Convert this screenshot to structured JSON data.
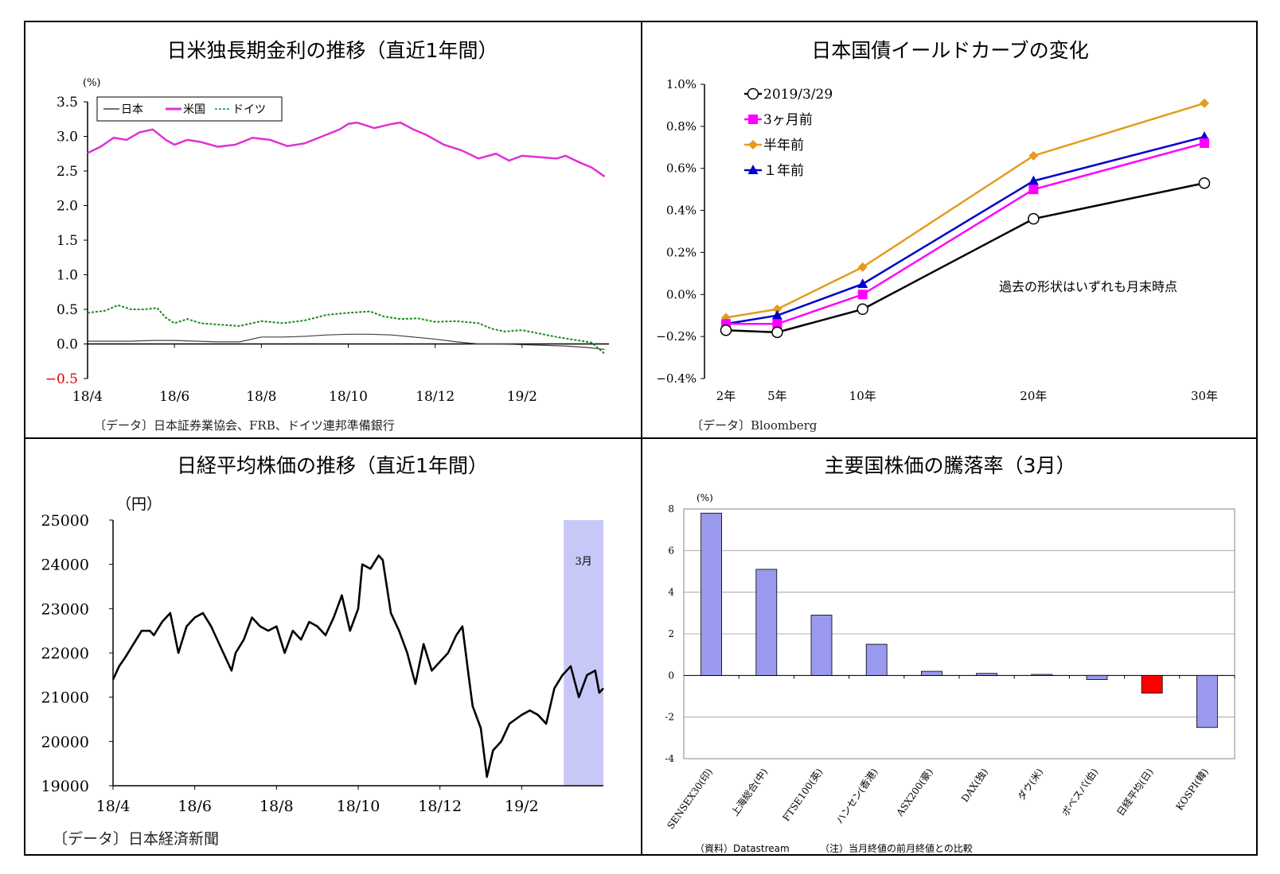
{
  "panels": [
    {
      "title": "日米独長期金利の推移（直近1年間）",
      "source": "〔データ〕日本証券業協会、FRB、ドイツ連邦準備銀行"
    },
    {
      "title": "日本国債イールドカーブの変化",
      "source": "〔データ〕Bloomberg"
    },
    {
      "title": "日経平均株価の推移（直近1年間）",
      "source": "〔データ〕日本経済新聞"
    },
    {
      "title": "主要国株価の騰落率（3月）",
      "source": "（資料）Datastream",
      "note": "（注）当月終値の前月終値との比較"
    }
  ],
  "chart_data": [
    {
      "type": "line",
      "title": "日米独長期金利の推移（直近1年間）",
      "yunit": "(%)",
      "ylim": [
        -0.5,
        3.5
      ],
      "yticks": [
        "3.5",
        "3.0",
        "2.5",
        "2.0",
        "1.5",
        "1.0",
        "0.5",
        "0.0",
        "−0.5"
      ],
      "ytick_values": [
        3.5,
        3.0,
        2.5,
        2.0,
        1.5,
        1.0,
        0.5,
        0.0,
        -0.5
      ],
      "xticks": [
        "18/4",
        "18/6",
        "18/8",
        "18/10",
        "18/12",
        "19/2"
      ],
      "xlim": [
        0,
        12
      ],
      "legend_position": "top-left",
      "series": [
        {
          "name": "日本",
          "color": "#404040",
          "style": "solid",
          "x": [
            0,
            0.5,
            1,
            1.5,
            2,
            2.5,
            3,
            3.5,
            4,
            4.5,
            5,
            5.5,
            6,
            6.5,
            7,
            7.5,
            8,
            8.5,
            9,
            9.5,
            10,
            10.5,
            11,
            11.5,
            11.9
          ],
          "values": [
            0.04,
            0.04,
            0.04,
            0.05,
            0.05,
            0.04,
            0.03,
            0.03,
            0.1,
            0.1,
            0.11,
            0.13,
            0.14,
            0.14,
            0.13,
            0.1,
            0.07,
            0.03,
            0.0,
            0.0,
            -0.01,
            -0.02,
            -0.03,
            -0.05,
            -0.08
          ]
        },
        {
          "name": "米国",
          "color": "#e030d8",
          "style": "solid",
          "x": [
            0,
            0.3,
            0.6,
            0.9,
            1.2,
            1.5,
            1.8,
            2.0,
            2.3,
            2.6,
            3,
            3.4,
            3.8,
            4.2,
            4.6,
            5,
            5.4,
            5.8,
            6,
            6.2,
            6.6,
            7,
            7.2,
            7.5,
            7.8,
            8.2,
            8.6,
            9,
            9.4,
            9.7,
            10,
            10.4,
            10.8,
            11,
            11.3,
            11.6,
            11.9
          ],
          "values": [
            2.76,
            2.85,
            2.98,
            2.95,
            3.06,
            3.1,
            2.95,
            2.88,
            2.95,
            2.92,
            2.85,
            2.88,
            2.98,
            2.95,
            2.86,
            2.9,
            3.0,
            3.1,
            3.18,
            3.2,
            3.12,
            3.18,
            3.2,
            3.1,
            3.02,
            2.88,
            2.8,
            2.68,
            2.75,
            2.65,
            2.72,
            2.7,
            2.68,
            2.72,
            2.63,
            2.55,
            2.42
          ]
        },
        {
          "name": "ドイツ",
          "color": "#1a8a1a",
          "style": "dashed",
          "x": [
            0,
            0.4,
            0.7,
            1.0,
            1.3,
            1.6,
            1.8,
            2.0,
            2.3,
            2.6,
            3,
            3.5,
            4,
            4.5,
            5,
            5.5,
            6,
            6.5,
            6.8,
            7.2,
            7.6,
            8,
            8.5,
            9,
            9.3,
            9.6,
            10,
            10.4,
            10.8,
            11.2,
            11.6,
            11.9
          ],
          "values": [
            0.45,
            0.48,
            0.56,
            0.5,
            0.5,
            0.52,
            0.38,
            0.3,
            0.36,
            0.3,
            0.28,
            0.26,
            0.33,
            0.3,
            0.34,
            0.42,
            0.45,
            0.47,
            0.4,
            0.36,
            0.37,
            0.32,
            0.33,
            0.3,
            0.22,
            0.18,
            0.2,
            0.15,
            0.1,
            0.06,
            0.02,
            -0.14
          ]
        }
      ]
    },
    {
      "type": "line",
      "title": "日本国債イールドカーブの変化",
      "ylim": [
        -0.4,
        1.0
      ],
      "yticks": [
        "1.0%",
        "0.8%",
        "0.6%",
        "0.4%",
        "0.2%",
        "0.0%",
        "−0.2%",
        "−0.4%"
      ],
      "ytick_values": [
        1.0,
        0.8,
        0.6,
        0.4,
        0.2,
        0.0,
        -0.2,
        -0.4
      ],
      "categories": [
        "2年",
        "5年",
        "10年",
        "20年",
        "30年"
      ],
      "x": [
        2,
        5,
        10,
        20,
        30
      ],
      "annotation": "過去の形状はいずれも月末時点",
      "legend_position": "top-left",
      "series": [
        {
          "name": "2019/3/29",
          "color": "#000000",
          "marker": "circle",
          "values": [
            -0.17,
            -0.18,
            -0.07,
            0.36,
            0.53
          ]
        },
        {
          "name": "3ヶ月前",
          "color": "#ff00ff",
          "marker": "square",
          "values": [
            -0.14,
            -0.14,
            0.0,
            0.5,
            0.72
          ]
        },
        {
          "name": "半年前",
          "color": "#e69a1e",
          "marker": "diamond",
          "values": [
            -0.11,
            -0.07,
            0.13,
            0.66,
            0.91
          ]
        },
        {
          "name": "１年前",
          "color": "#0000cc",
          "marker": "triangle",
          "values": [
            -0.14,
            -0.1,
            0.05,
            0.54,
            0.75
          ]
        }
      ]
    },
    {
      "type": "line",
      "title": "日経平均株価の推移（直近1年間）",
      "yunit": "（円）",
      "ylim": [
        19000,
        25000
      ],
      "yticks": [
        "25000",
        "24000",
        "23000",
        "22000",
        "21000",
        "20000",
        "19000"
      ],
      "ytick_values": [
        25000,
        24000,
        23000,
        22000,
        21000,
        20000,
        19000
      ],
      "xticks": [
        "18/4",
        "18/6",
        "18/8",
        "18/10",
        "18/12",
        "19/2"
      ],
      "xlim": [
        0,
        12
      ],
      "highlight": {
        "label": "3月",
        "from": 11.03,
        "to": 12.0,
        "color": "#c8c8f8"
      },
      "series": [
        {
          "name": "",
          "color": "#000000",
          "x": [
            0,
            0.15,
            0.3,
            0.5,
            0.7,
            0.9,
            1.0,
            1.2,
            1.4,
            1.6,
            1.8,
            2.0,
            2.2,
            2.4,
            2.5,
            2.7,
            2.9,
            3.0,
            3.2,
            3.4,
            3.6,
            3.8,
            4.0,
            4.2,
            4.4,
            4.6,
            4.8,
            5.0,
            5.2,
            5.4,
            5.6,
            5.8,
            6.0,
            6.1,
            6.3,
            6.5,
            6.6,
            6.8,
            7.0,
            7.2,
            7.4,
            7.6,
            7.8,
            8.0,
            8.2,
            8.4,
            8.55,
            8.7,
            8.8,
            9.0,
            9.15,
            9.3,
            9.5,
            9.7,
            9.85,
            10.0,
            10.2,
            10.4,
            10.6,
            10.8,
            11.0,
            11.2,
            11.4,
            11.6,
            11.8,
            11.9,
            12.0
          ],
          "values": [
            21400,
            21700,
            21900,
            22200,
            22500,
            22500,
            22400,
            22700,
            22900,
            22000,
            22600,
            22800,
            22900,
            22600,
            22400,
            22000,
            21600,
            22000,
            22300,
            22800,
            22600,
            22500,
            22600,
            22000,
            22500,
            22300,
            22700,
            22600,
            22400,
            22800,
            23300,
            22500,
            23000,
            24000,
            23900,
            24200,
            24100,
            22900,
            22500,
            22000,
            21300,
            22200,
            21600,
            21800,
            22000,
            22400,
            22600,
            21500,
            20800,
            20300,
            19200,
            19800,
            20000,
            20400,
            20500,
            20600,
            20700,
            20600,
            20400,
            21200,
            21500,
            21700,
            21000,
            21500,
            21600,
            21100,
            21200
          ]
        }
      ]
    },
    {
      "type": "bar",
      "title": "主要国株価の騰落率（3月）",
      "yunit": "(%)",
      "ylim": [
        -4,
        8
      ],
      "yticks": [
        "8",
        "6",
        "4",
        "2",
        "0",
        "-2",
        "-4"
      ],
      "ytick_values": [
        8,
        6,
        4,
        2,
        0,
        -2,
        -4
      ],
      "categories": [
        "SENSEX30(印)",
        "上海総合(中)",
        "FTSE100(英)",
        "ハンセン(香港)",
        "ASX200(豪)",
        "DAX(独)",
        "ダウ(米)",
        "ボベスパ(伯)",
        "日経平均(日)",
        "KOSPI(韓)"
      ],
      "values": [
        7.8,
        5.1,
        2.9,
        1.5,
        0.2,
        0.1,
        0.05,
        -0.2,
        -0.85,
        -2.5
      ],
      "colors": {
        "default": "#9999ee",
        "highlight": "#ff0000",
        "highlight_index": 8
      },
      "grid": true
    }
  ]
}
